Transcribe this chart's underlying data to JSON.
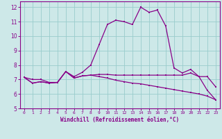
{
  "xlabel": "Windchill (Refroidissement éolien,°C)",
  "background_color": "#cde8e8",
  "line_color": "#880088",
  "grid_color": "#99cccc",
  "ylim": [
    5,
    12.4
  ],
  "xlim": [
    -0.5,
    23.5
  ],
  "yticks": [
    5,
    6,
    7,
    8,
    9,
    10,
    11,
    12
  ],
  "xticks": [
    0,
    1,
    2,
    3,
    4,
    5,
    6,
    7,
    8,
    9,
    10,
    11,
    12,
    13,
    14,
    15,
    16,
    17,
    18,
    19,
    20,
    21,
    22,
    23
  ],
  "series1": [
    7.15,
    6.75,
    6.85,
    6.75,
    6.8,
    7.55,
    7.1,
    7.25,
    7.3,
    7.35,
    7.35,
    7.3,
    7.3,
    7.3,
    7.3,
    7.3,
    7.3,
    7.3,
    7.3,
    7.3,
    7.45,
    7.2,
    7.2,
    6.5
  ],
  "series2": [
    7.15,
    7.0,
    7.0,
    6.8,
    6.8,
    7.55,
    7.2,
    7.5,
    8.0,
    9.4,
    10.8,
    11.1,
    11.0,
    10.8,
    12.0,
    11.65,
    11.8,
    10.7,
    7.8,
    7.45,
    7.7,
    7.2,
    6.25,
    5.6
  ],
  "series3": [
    7.15,
    6.75,
    6.85,
    6.75,
    6.8,
    7.55,
    7.1,
    7.25,
    7.3,
    7.2,
    7.1,
    6.95,
    6.85,
    6.75,
    6.7,
    6.6,
    6.5,
    6.4,
    6.3,
    6.2,
    6.1,
    6.0,
    5.85,
    5.6
  ]
}
